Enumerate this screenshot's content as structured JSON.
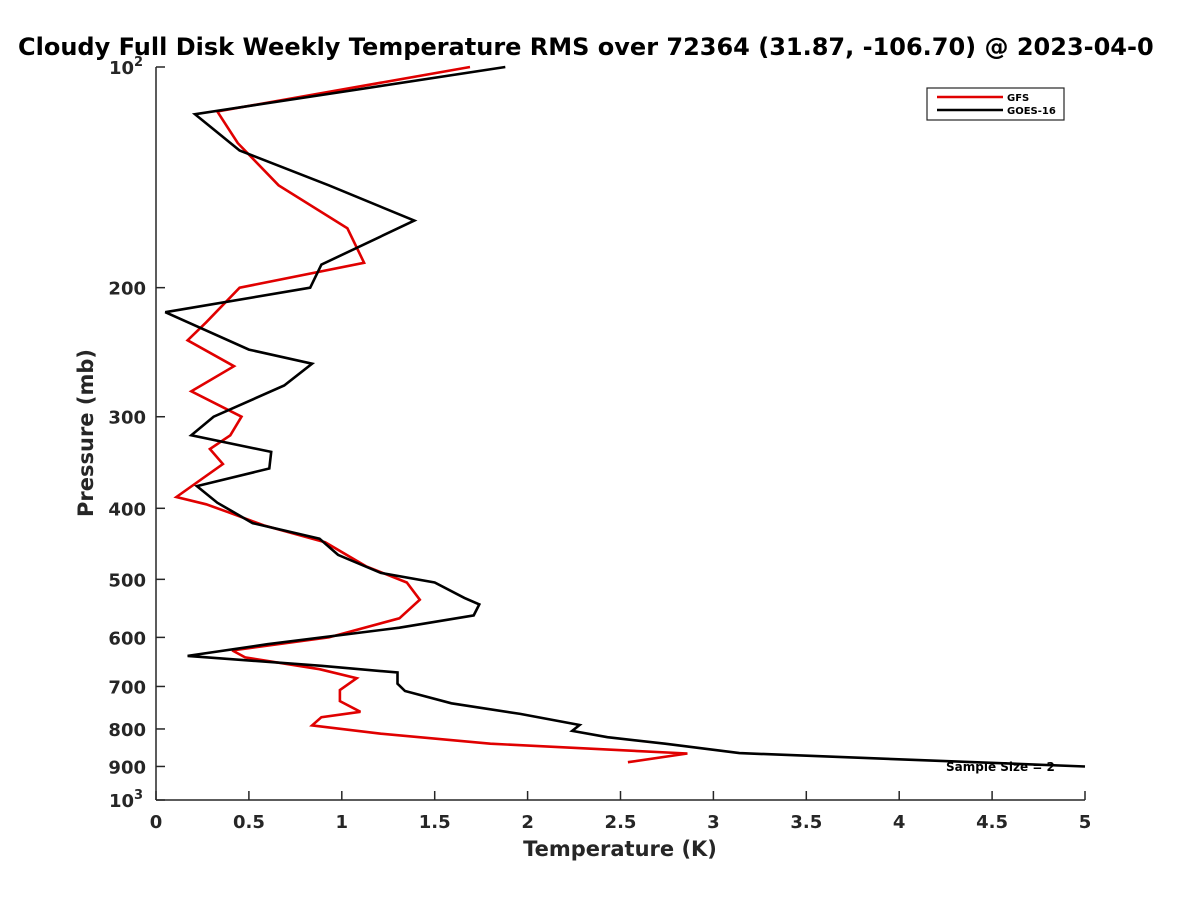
{
  "chart_data": {
    "type": "line",
    "title": "Cloudy Full Disk Weekly Temperature RMS over 72364 (31.87, -106.70) @ 2023-04-0",
    "xlabel": "Temperature (K)",
    "ylabel": "Pressure (mb)",
    "xlim": [
      0,
      5
    ],
    "ylim": [
      100,
      1000
    ],
    "y_scale": "log",
    "y_reversed": true,
    "grid": false,
    "legend_position": "top-right",
    "x_ticks": [
      "0",
      "0.5",
      "1",
      "1.5",
      "2",
      "2.5",
      "3",
      "3.5",
      "4",
      "4.5",
      "5"
    ],
    "y_ticks": [
      {
        "value": 100,
        "base": "10",
        "exp": "2"
      },
      {
        "value": 200,
        "label": "200"
      },
      {
        "value": 300,
        "label": "300"
      },
      {
        "value": 400,
        "label": "400"
      },
      {
        "value": 500,
        "label": "500"
      },
      {
        "value": 600,
        "label": "600"
      },
      {
        "value": 700,
        "label": "700"
      },
      {
        "value": 800,
        "label": "800"
      },
      {
        "value": 900,
        "label": "900"
      },
      {
        "value": 1000,
        "base": "10",
        "exp": "3"
      }
    ],
    "annotation": "Sample Size = 2",
    "series": [
      {
        "name": "GFS",
        "color": "#e00000",
        "x": [
          1.69,
          0.33,
          0.44,
          0.66,
          1.03,
          1.12,
          0.45,
          0.27,
          0.17,
          0.42,
          0.19,
          0.46,
          0.4,
          0.29,
          0.36,
          0.11,
          0.27,
          0.39,
          0.58,
          0.91,
          1.13,
          1.35,
          1.42,
          1.31,
          0.93,
          0.41,
          0.48,
          0.88,
          1.08,
          0.99,
          0.99,
          1.1,
          0.89,
          0.84,
          1.21,
          1.8,
          2.86,
          2.54
        ],
        "y": [
          100,
          115,
          127,
          145,
          166,
          185,
          200,
          223,
          236,
          256,
          277,
          300,
          318,
          332,
          348,
          386,
          395,
          405,
          422,
          445,
          480,
          505,
          533,
          565,
          600,
          625,
          639,
          663,
          682,
          708,
          733,
          758,
          771,
          791,
          812,
          838,
          864,
          888
        ]
      },
      {
        "name": "GOES-16",
        "color": "#000000",
        "x": [
          1.88,
          0.21,
          0.45,
          0.93,
          1.39,
          0.89,
          0.83,
          0.05,
          0.5,
          0.84,
          0.69,
          0.31,
          0.19,
          0.62,
          0.61,
          0.22,
          0.33,
          0.52,
          0.88,
          0.98,
          1.21,
          1.5,
          1.66,
          1.74,
          1.71,
          1.31,
          0.6,
          0.17,
          0.89,
          1.3,
          1.3,
          1.34,
          1.59,
          1.96,
          2.28,
          2.24,
          2.43,
          2.74,
          3.14,
          5.0
        ],
        "y": [
          100,
          116,
          130,
          145,
          162,
          186,
          200,
          216,
          243,
          254,
          272,
          300,
          318,
          335,
          353,
          373,
          393,
          419,
          440,
          463,
          490,
          505,
          530,
          541,
          560,
          582,
          613,
          636,
          656,
          670,
          694,
          710,
          738,
          763,
          790,
          805,
          821,
          838,
          863,
          900
        ]
      }
    ]
  }
}
